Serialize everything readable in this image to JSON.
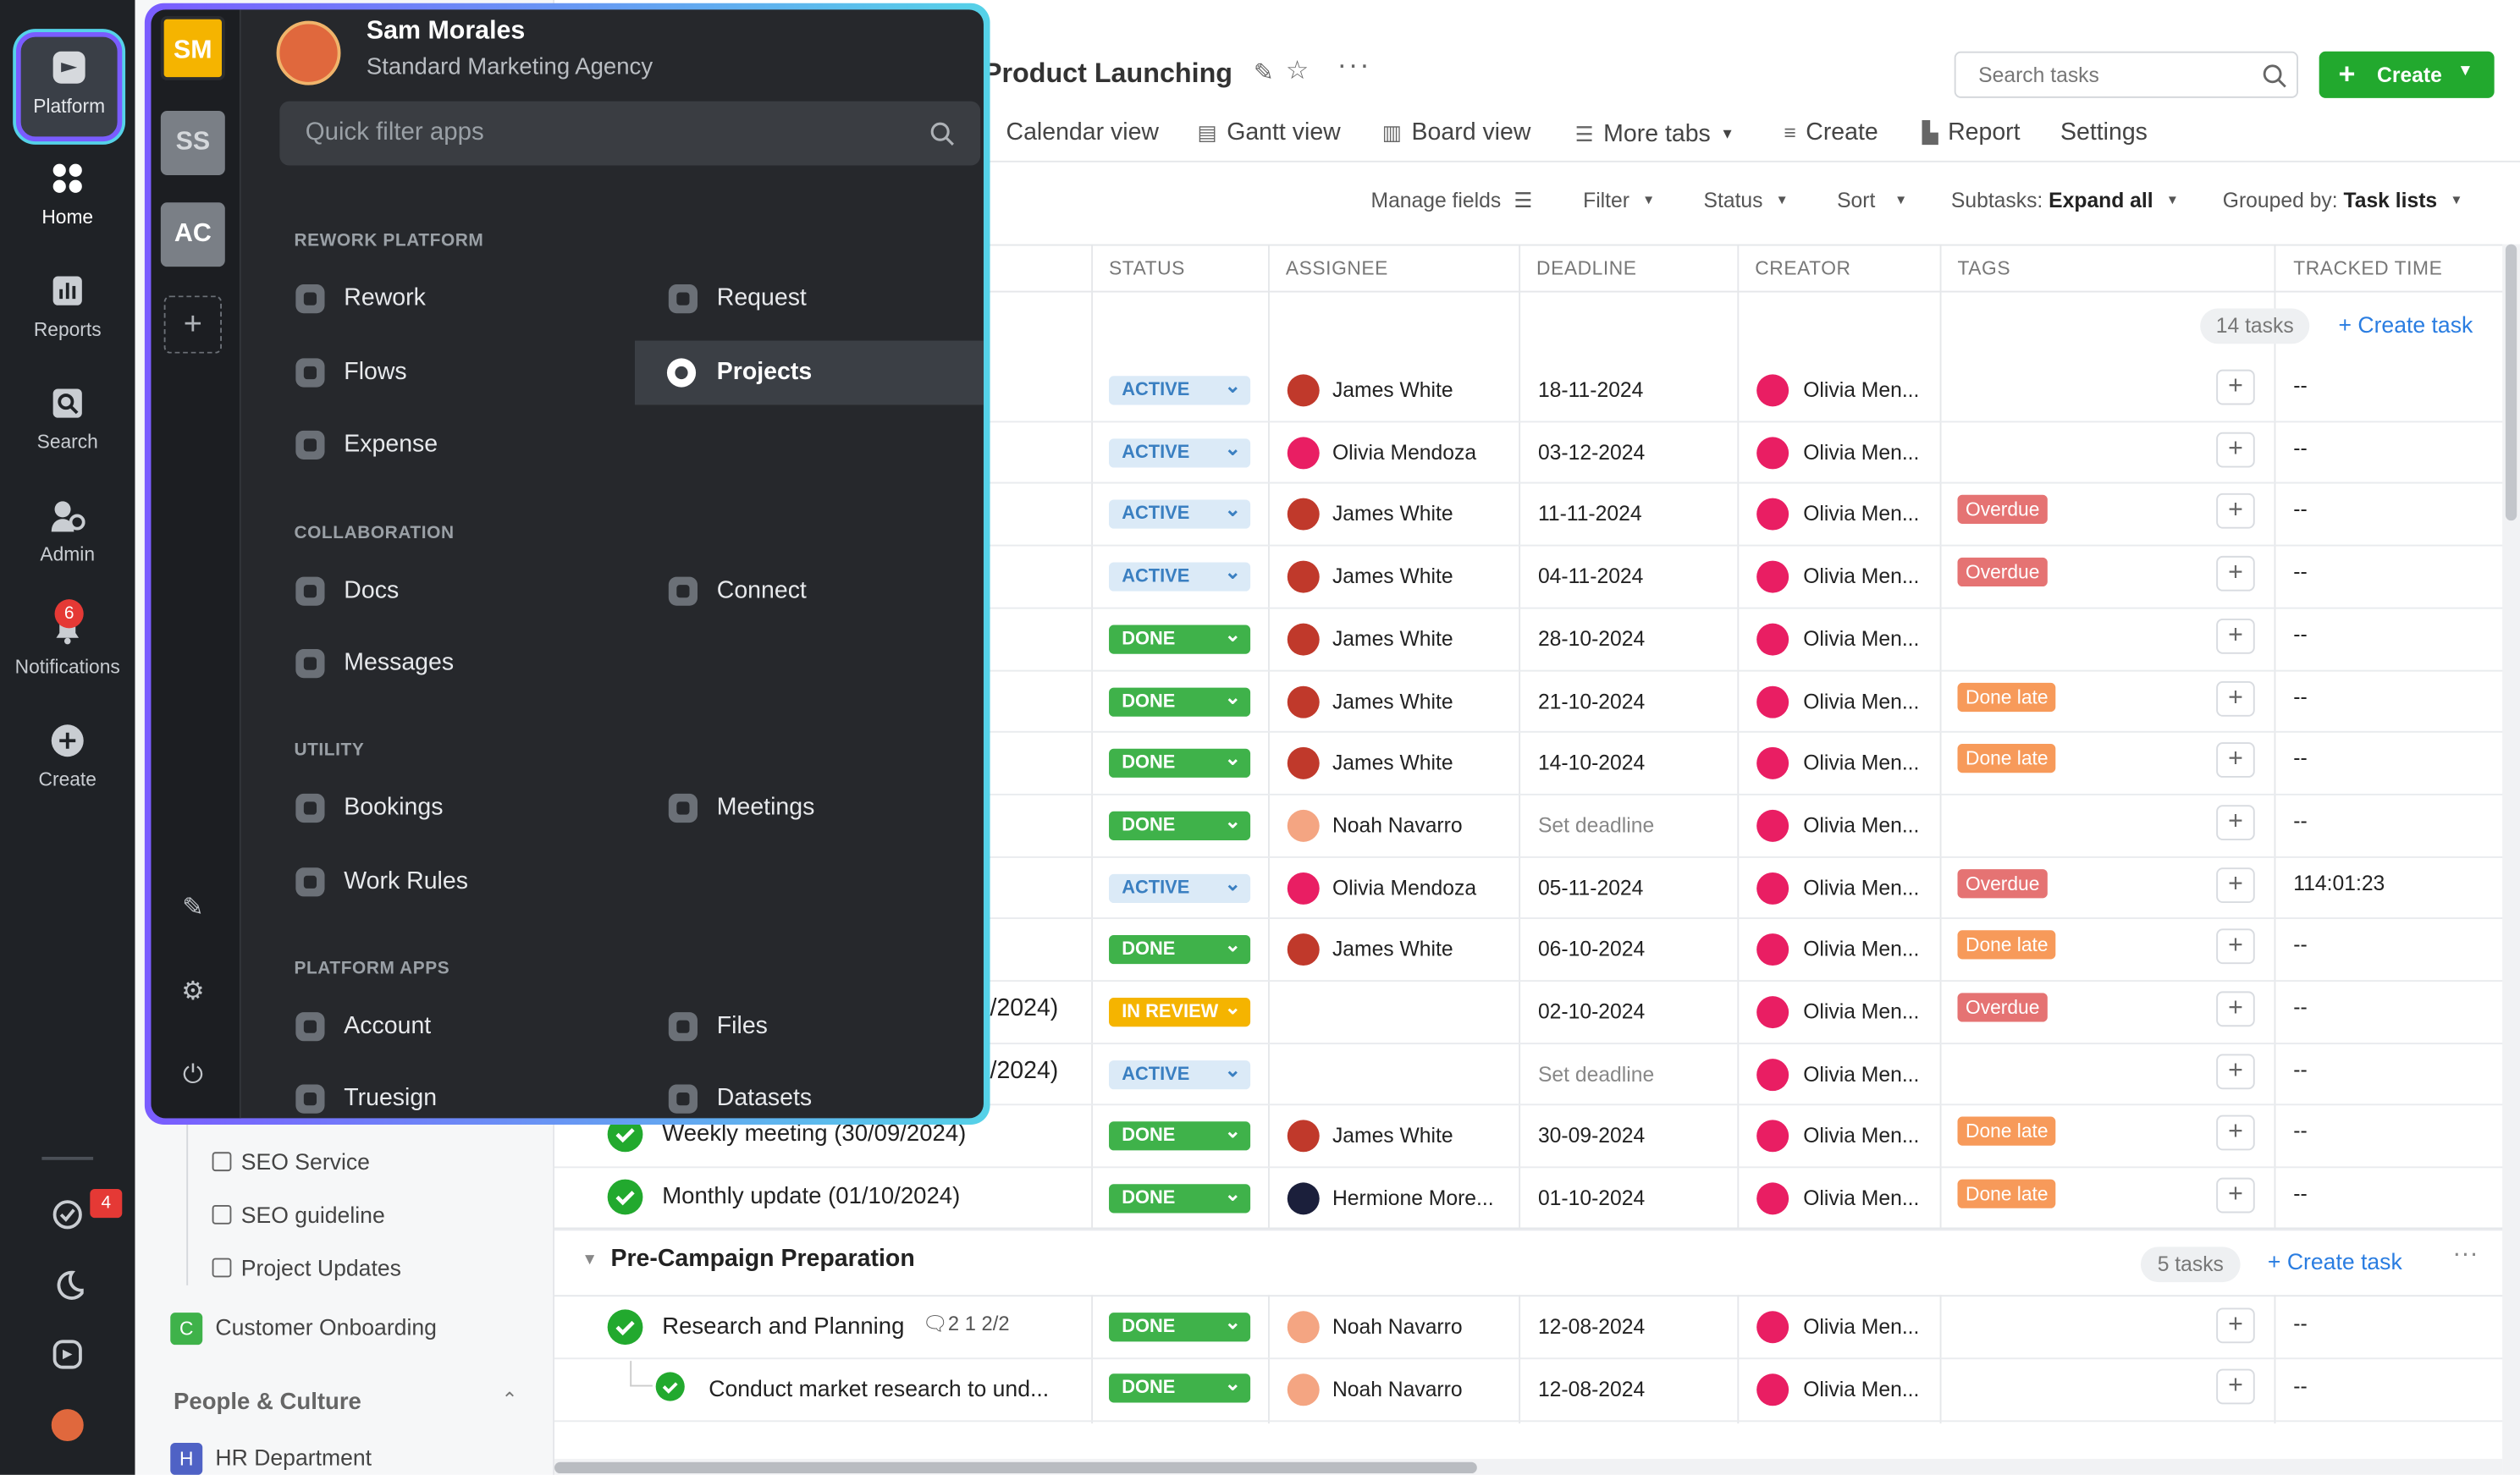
{
  "rail": {
    "platform_label": "Platform",
    "items": [
      {
        "label": "Home",
        "icon": "grid-icon"
      },
      {
        "label": "Reports",
        "icon": "bar-chart-icon"
      },
      {
        "label": "Search",
        "icon": "search-icon"
      },
      {
        "label": "Admin",
        "icon": "admin-icon"
      },
      {
        "label": "Notifications",
        "icon": "bell-icon",
        "badge": "6"
      },
      {
        "label": "Create",
        "icon": "plus-circle-icon"
      }
    ],
    "bottom": {
      "tasks_badge": "4"
    }
  },
  "sidebar": {
    "items": [
      "SEO Service",
      "SEO guideline",
      "Project Updates"
    ],
    "customer_onboarding": {
      "letter": "C",
      "label": "Customer Onboarding"
    },
    "section_people": "People & Culture",
    "hr": {
      "letter": "H",
      "label": "HR Department"
    }
  },
  "header": {
    "title": "Product Launching",
    "search_placeholder": "Search tasks",
    "create_label": "Create",
    "tabs": [
      "Calendar view",
      "Gantt view",
      "Board view",
      "More tabs",
      "Create",
      "Report",
      "Settings"
    ]
  },
  "controls": {
    "manage_fields": "Manage fields",
    "filter": "Filter",
    "status": "Status",
    "sort": "Sort",
    "subtasks_label": "Subtasks:",
    "subtasks_value": "Expand all",
    "grouped_label": "Grouped by:",
    "grouped_value": "Task lists"
  },
  "columns": [
    "STATUS",
    "ASSIGNEE",
    "DEADLINE",
    "CREATOR",
    "TAGS",
    "TRACKED TIME"
  ],
  "group1": {
    "count": "14 tasks",
    "create_task": "+ Create task"
  },
  "rows": [
    {
      "title": "",
      "status": "ACTIVE",
      "assignee": "James White",
      "av": "j",
      "deadline": "18-11-2024",
      "creator": "Olivia Men...",
      "tag": "",
      "time": "--"
    },
    {
      "title": "",
      "status": "ACTIVE",
      "assignee": "Olivia Mendoza",
      "av": "o",
      "deadline": "03-12-2024",
      "creator": "Olivia Men...",
      "tag": "",
      "time": "--"
    },
    {
      "title": "",
      "status": "ACTIVE",
      "assignee": "James White",
      "av": "j",
      "deadline": "11-11-2024",
      "creator": "Olivia Men...",
      "tag": "Overdue",
      "time": "--"
    },
    {
      "title": "",
      "status": "ACTIVE",
      "assignee": "James White",
      "av": "j",
      "deadline": "04-11-2024",
      "creator": "Olivia Men...",
      "tag": "Overdue",
      "time": "--"
    },
    {
      "title": "",
      "status": "DONE",
      "assignee": "James White",
      "av": "j",
      "deadline": "28-10-2024",
      "creator": "Olivia Men...",
      "tag": "",
      "time": "--"
    },
    {
      "title": "",
      "status": "DONE",
      "assignee": "James White",
      "av": "j",
      "deadline": "21-10-2024",
      "creator": "Olivia Men...",
      "tag": "Done late",
      "time": "--"
    },
    {
      "title": "",
      "status": "DONE",
      "assignee": "James White",
      "av": "j",
      "deadline": "14-10-2024",
      "creator": "Olivia Men...",
      "tag": "Done late",
      "time": "--"
    },
    {
      "title": "",
      "status": "DONE",
      "assignee": "Noah Navarro",
      "av": "n",
      "deadline": "Set deadline",
      "creator": "Olivia Men...",
      "tag": "",
      "time": "--"
    },
    {
      "title": "",
      "status": "ACTIVE",
      "assignee": "Olivia Mendoza",
      "av": "o",
      "deadline": "05-11-2024",
      "creator": "Olivia Men...",
      "tag": "Overdue",
      "time": "114:01:23"
    },
    {
      "title": "",
      "status": "DONE",
      "assignee": "James White",
      "av": "j",
      "deadline": "06-10-2024",
      "creator": "Olivia Men...",
      "tag": "Done late",
      "time": "--"
    },
    {
      "title": "/2024)",
      "status": "IN REVIEW",
      "assignee": "",
      "av": "",
      "deadline": "02-10-2024",
      "creator": "Olivia Men...",
      "tag": "Overdue",
      "time": "--"
    },
    {
      "title": "/2024)",
      "status": "ACTIVE",
      "assignee": "",
      "av": "",
      "deadline": "Set deadline",
      "creator": "Olivia Men...",
      "tag": "",
      "time": "--"
    },
    {
      "title": "Weekly meeting (30/09/2024)",
      "status": "DONE",
      "assignee": "James White",
      "av": "j",
      "deadline": "30-09-2024",
      "creator": "Olivia Men...",
      "tag": "Done late",
      "time": "--"
    },
    {
      "title": "Monthly update (01/10/2024)",
      "status": "DONE",
      "assignee": "Hermione More...",
      "av": "h",
      "deadline": "01-10-2024",
      "creator": "Olivia Men...",
      "tag": "Done late",
      "time": "--"
    }
  ],
  "group2": {
    "title": "Pre-Campaign Preparation",
    "count": "5 tasks",
    "create_task": "+ Create task"
  },
  "rows2": [
    {
      "title": "Research and Planning",
      "meta": "2   1   2/2",
      "status": "DONE",
      "assignee": "Noah Navarro",
      "deadline": "12-08-2024",
      "creator": "Olivia Men...",
      "time": "--"
    },
    {
      "title": "Conduct market research to und...",
      "status": "DONE",
      "assignee": "Noah Navarro",
      "deadline": "12-08-2024",
      "creator": "Olivia Men...",
      "time": "--"
    }
  ],
  "overlay": {
    "user_name": "Sam Morales",
    "org": "Standard Marketing Agency",
    "filter_placeholder": "Quick filter apps",
    "workspaces": [
      {
        "label": "SM",
        "color": "#f5b400"
      },
      {
        "label": "SS",
        "color": "#7a7f86"
      },
      {
        "label": "AC",
        "color": "#7a7f86"
      }
    ],
    "sections": {
      "rework": "REWORK PLATFORM",
      "collab": "COLLABORATION",
      "utility": "UTILITY",
      "platform": "PLATFORM APPS"
    },
    "apps": {
      "rework": "Rework",
      "request": "Request",
      "flows": "Flows",
      "projects": "Projects",
      "expense": "Expense",
      "docs": "Docs",
      "connect": "Connect",
      "messages": "Messages",
      "bookings": "Bookings",
      "meetings": "Meetings",
      "workrules": "Work Rules",
      "account": "Account",
      "files": "Files",
      "truesign": "Truesign",
      "datasets": "Datasets"
    }
  }
}
